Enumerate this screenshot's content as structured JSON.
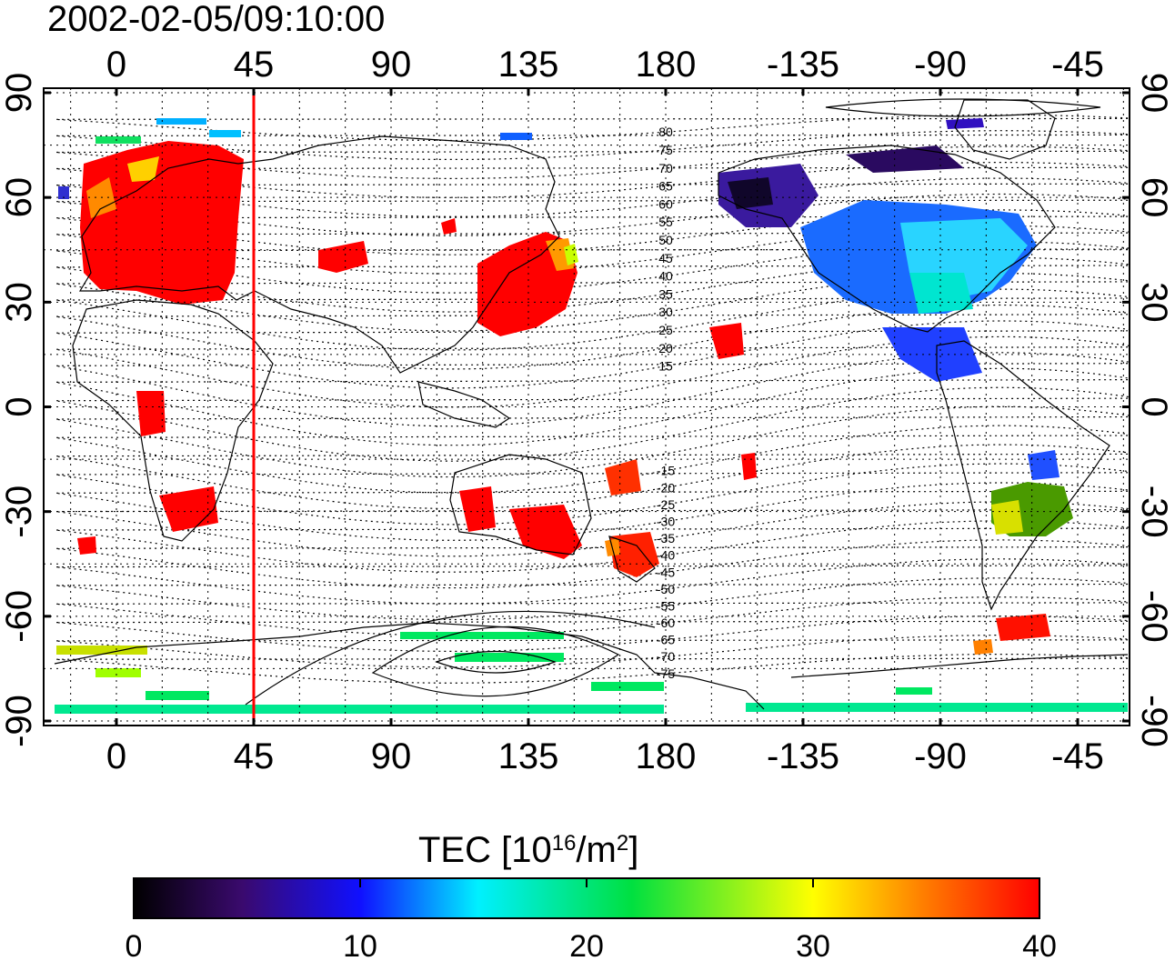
{
  "title": "2002-02-05/09:10:00",
  "map": {
    "x_ticks_top": [
      "0",
      "45",
      "90",
      "135",
      "180",
      "-135",
      "-90",
      "-45"
    ],
    "x_ticks_bottom": [
      "0",
      "45",
      "90",
      "135",
      "180",
      "-135",
      "-90",
      "-45"
    ],
    "y_ticks_left": [
      "90",
      "60",
      "30",
      "0",
      "-30",
      "-60",
      "-90"
    ],
    "y_ticks_right": [
      "90",
      "60",
      "30",
      "0",
      "-30",
      "-60",
      "-90"
    ],
    "meridian_marker_longitude": 45,
    "contour_labels": [
      "80",
      "75",
      "70",
      "65",
      "60",
      "55",
      "50",
      "45",
      "40",
      "35",
      "30",
      "25",
      "20",
      "15",
      "-15",
      "-20",
      "-25",
      "-30",
      "-35",
      "-40",
      "-45",
      "-50",
      "-55",
      "-60",
      "-65",
      "-70",
      "-75"
    ]
  },
  "colorbar": {
    "label_main": "TEC  [10",
    "label_sup1": "16",
    "label_mid": "/m",
    "label_sup2": "2",
    "label_end": "]",
    "ticks": [
      "0",
      "10",
      "20",
      "30",
      "40"
    ],
    "min": 0,
    "max": 40,
    "stops": [
      "#000000",
      "#3a0a6e",
      "#1010ff",
      "#00f0ff",
      "#00e040",
      "#ffff00",
      "#ff8000",
      "#ff0000"
    ]
  }
}
